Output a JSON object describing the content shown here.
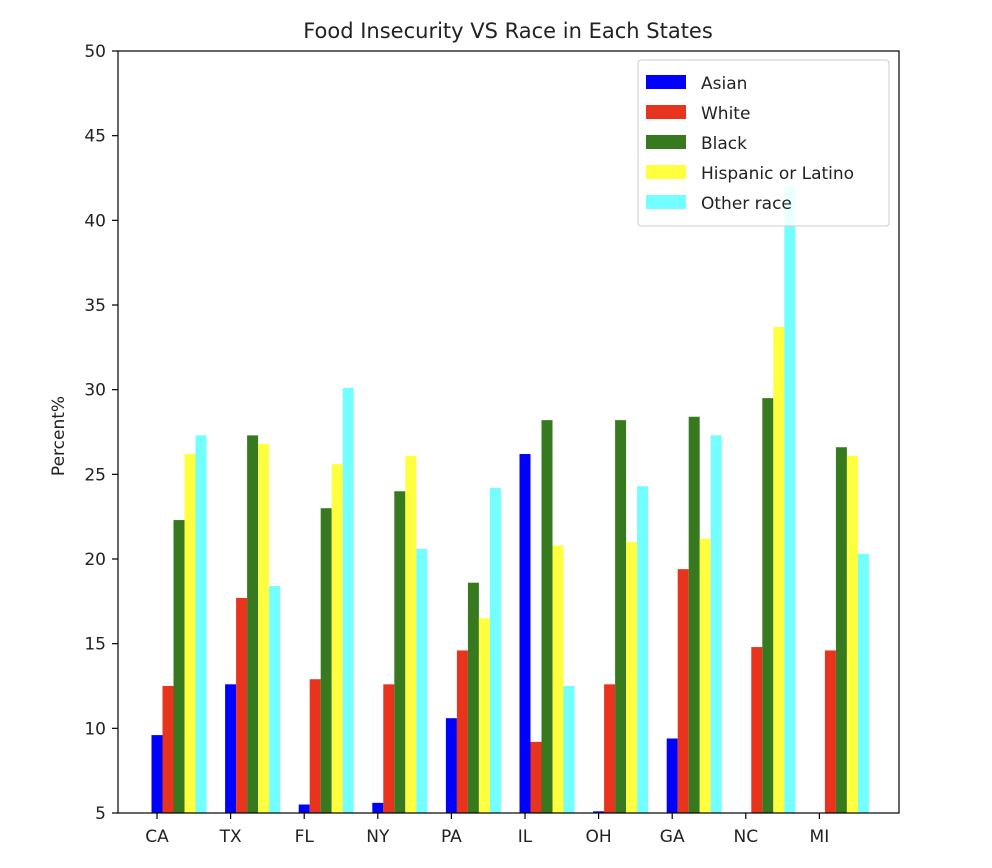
{
  "chart_data": {
    "type": "bar",
    "title": "Food Insecurity VS Race in Each States",
    "xlabel": "",
    "ylabel": "Percent%",
    "ylim": [
      5,
      50
    ],
    "yticks": [
      5,
      10,
      15,
      20,
      25,
      30,
      35,
      40,
      45,
      50
    ],
    "categories": [
      "CA",
      "TX",
      "FL",
      "NY",
      "PA",
      "IL",
      "OH",
      "GA",
      "NC",
      "MI"
    ],
    "legend_position": "top-right",
    "grid": false,
    "series": [
      {
        "name": "Asian",
        "color": "#0000ff",
        "values": [
          9.6,
          12.6,
          5.5,
          5.6,
          10.6,
          26.2,
          5.1,
          9.4,
          null,
          null
        ]
      },
      {
        "name": "White",
        "color": "#e8341c",
        "values": [
          12.5,
          17.7,
          12.9,
          12.6,
          14.6,
          9.2,
          12.6,
          19.4,
          14.8,
          14.6
        ]
      },
      {
        "name": "Black",
        "color": "#37791f",
        "values": [
          22.3,
          27.3,
          23.0,
          24.0,
          18.6,
          28.2,
          28.2,
          28.4,
          29.5,
          26.6
        ]
      },
      {
        "name": "Hispanic or Latino",
        "color": "#ffff40",
        "values": [
          26.2,
          26.8,
          25.6,
          26.1,
          16.5,
          20.8,
          21.0,
          21.2,
          33.7,
          26.1
        ]
      },
      {
        "name": "Other race",
        "color": "#73ffff",
        "values": [
          27.3,
          18.4,
          30.1,
          20.6,
          24.2,
          12.5,
          24.3,
          27.3,
          42.0,
          20.3
        ]
      }
    ]
  }
}
